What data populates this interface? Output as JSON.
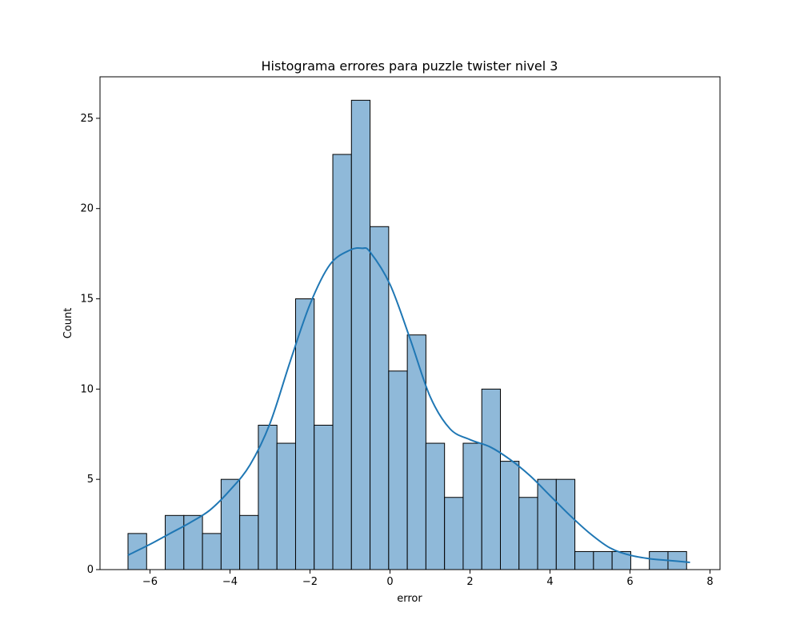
{
  "chart_data": {
    "type": "bar",
    "title": "Histograma errores para puzzle twister nivel 3",
    "xlabel": "error",
    "ylabel": "Count",
    "xlim": [
      -7.25,
      8.25
    ],
    "ylim": [
      0,
      27.3
    ],
    "xticks": [
      -6,
      -4,
      -2,
      0,
      2,
      4,
      6,
      8
    ],
    "yticks": [
      0,
      5,
      10,
      15,
      20,
      25
    ],
    "bin_start": -6.55,
    "bin_width": 0.4655,
    "counts": [
      2,
      0,
      3,
      3,
      2,
      5,
      3,
      8,
      7,
      15,
      8,
      23,
      26,
      19,
      11,
      13,
      7,
      4,
      7,
      10,
      6,
      4,
      5,
      5,
      1,
      1,
      1,
      0,
      1,
      1
    ],
    "bar_color": "#8fb9d9",
    "kde_color": "#1f77b4",
    "kde": {
      "x": [
        -6.55,
        -6.0,
        -5.5,
        -5.0,
        -4.5,
        -4.0,
        -3.5,
        -3.0,
        -2.5,
        -2.0,
        -1.5,
        -1.0,
        -0.7,
        -0.5,
        0.0,
        0.5,
        1.0,
        1.5,
        2.0,
        2.5,
        3.0,
        3.5,
        4.0,
        4.5,
        5.0,
        5.5,
        6.0,
        6.5,
        7.0,
        7.5
      ],
      "y": [
        0.8,
        1.4,
        2.0,
        2.6,
        3.3,
        4.4,
        5.8,
        8.1,
        11.5,
        14.7,
        16.9,
        17.7,
        17.8,
        17.6,
        15.8,
        12.8,
        9.6,
        7.8,
        7.2,
        6.8,
        6.1,
        5.2,
        4.1,
        3.0,
        2.0,
        1.2,
        0.8,
        0.6,
        0.5,
        0.4
      ]
    }
  }
}
